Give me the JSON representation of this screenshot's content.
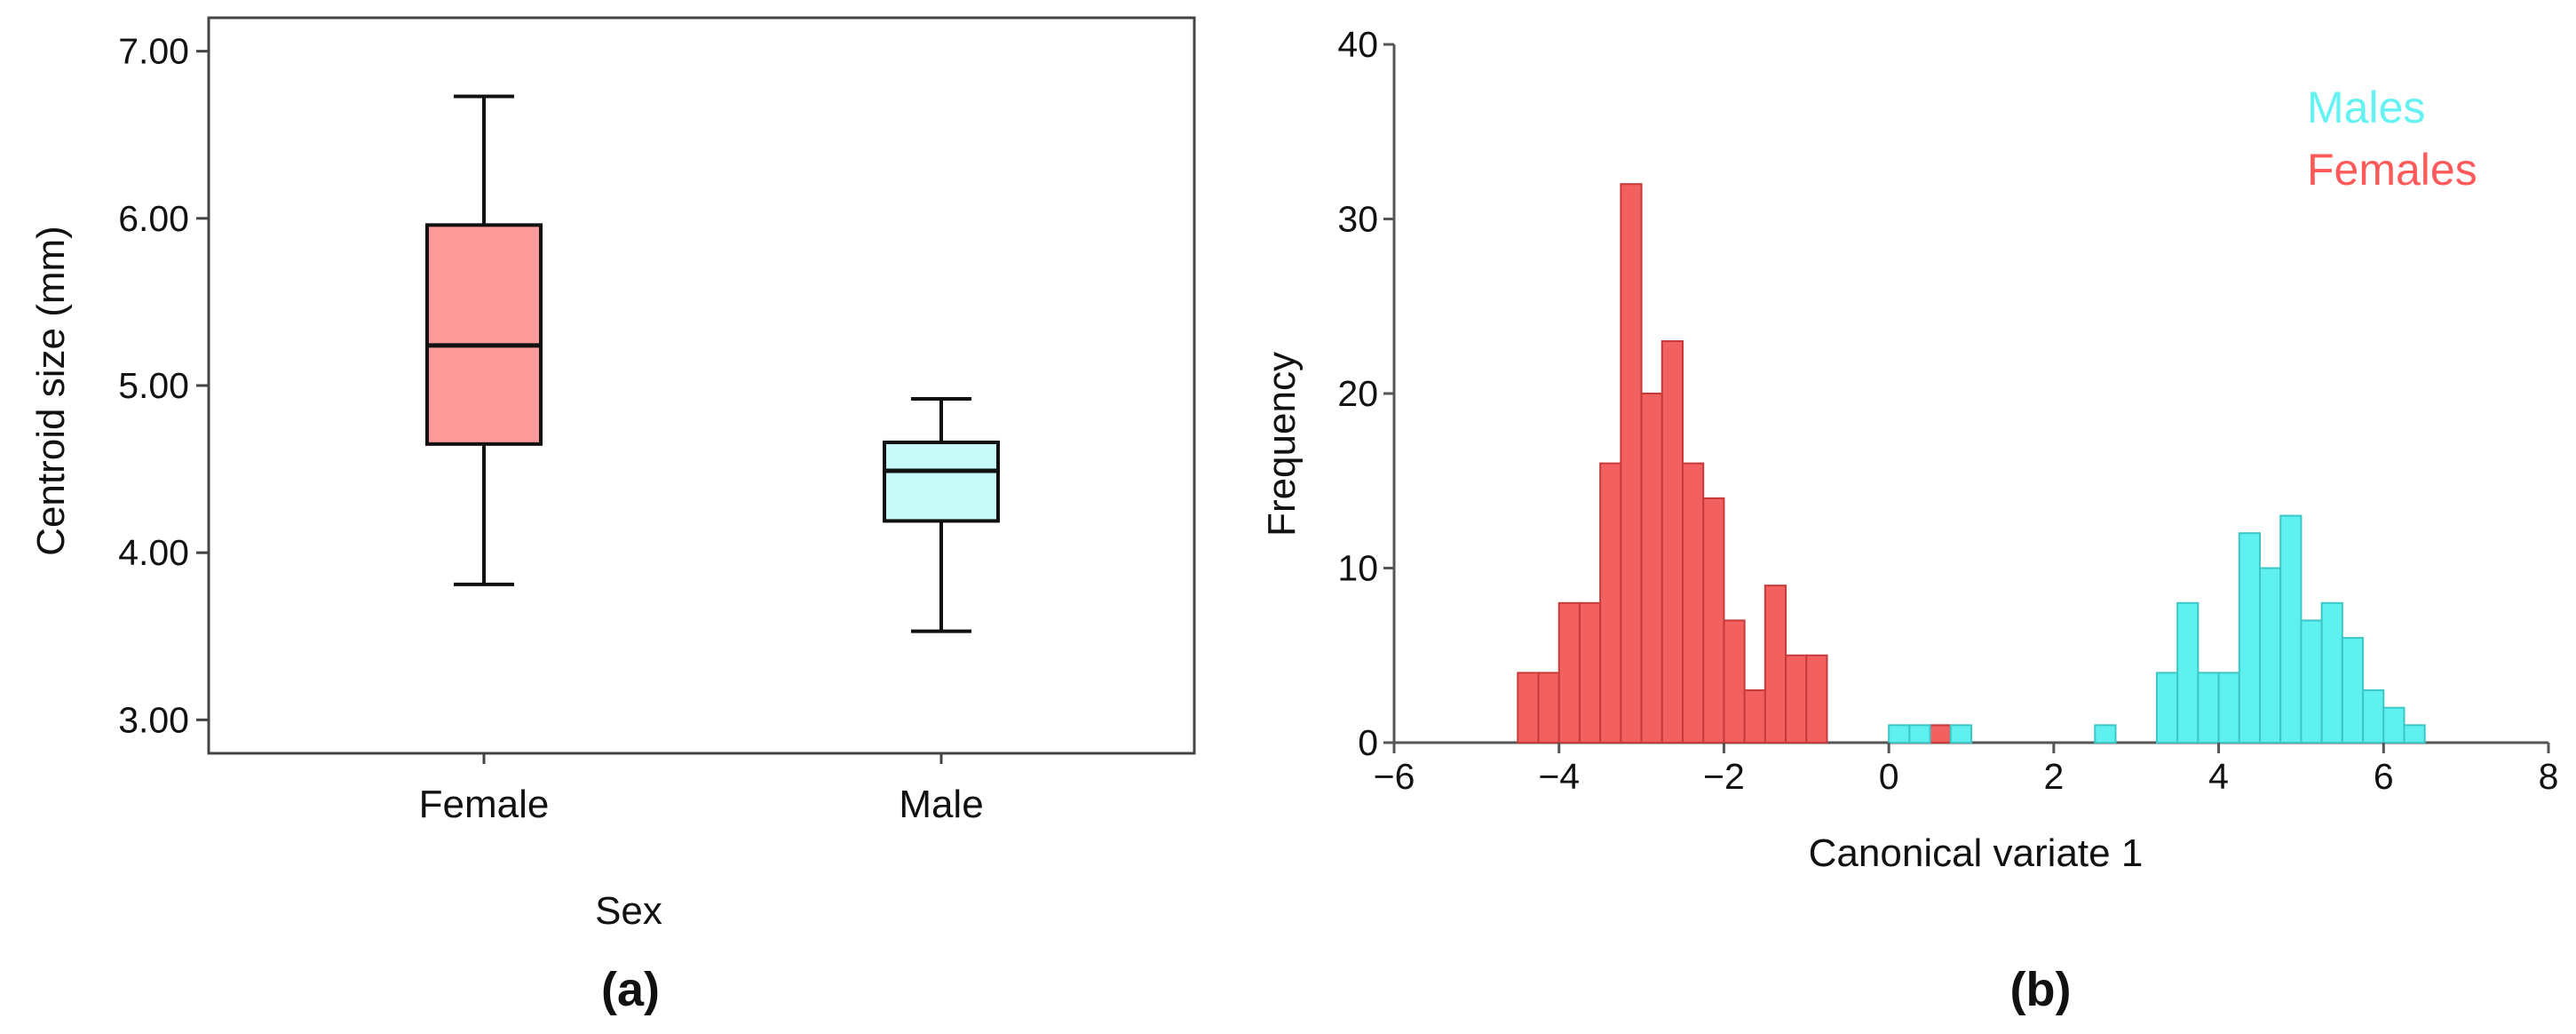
{
  "chart_data": [
    {
      "type": "box",
      "panel_label": "(a)",
      "title": "",
      "xlabel": "Sex",
      "ylabel": "Centroid size (mm)",
      "ylim": [
        2.8,
        7.2
      ],
      "yticks": [
        "3.00",
        "4.00",
        "5.00",
        "6.00",
        "7.00"
      ],
      "grid": false,
      "categories": [
        "Female",
        "Male"
      ],
      "boxes": [
        {
          "name": "Female",
          "whisker_low": 3.81,
          "q1": 4.65,
          "median": 5.24,
          "q3": 5.96,
          "whisker_high": 6.73,
          "color": "#ff9a9a"
        },
        {
          "name": "Male",
          "whisker_low": 3.53,
          "q1": 4.19,
          "median": 4.49,
          "q3": 4.66,
          "whisker_high": 4.92,
          "color": "#c8fafa"
        }
      ]
    },
    {
      "type": "histogram",
      "panel_label": "(b)",
      "title": "",
      "xlabel": "Canonical variate 1",
      "ylabel": "Frequency",
      "xlim": [
        -6,
        8
      ],
      "ylim": [
        0,
        40
      ],
      "xticks": [
        "−6",
        "−4",
        "−2",
        "0",
        "2",
        "4",
        "6",
        "8"
      ],
      "yticks": [
        "0",
        "10",
        "20",
        "30",
        "40"
      ],
      "bin_width": 0.25,
      "legend": {
        "position": "top-right",
        "entries": [
          {
            "name": "Males",
            "color": "#66f2f2"
          },
          {
            "name": "Females",
            "color": "#ff5a5a"
          }
        ]
      },
      "series": [
        {
          "name": "Females",
          "color": "#f26060",
          "edge": "#c83a3a",
          "bin_starts": [
            -4.5,
            -4.25,
            -4.0,
            -3.75,
            -3.5,
            -3.25,
            -3.0,
            -2.75,
            -2.5,
            -2.25,
            -2.0,
            -1.75,
            -1.5,
            -1.25,
            -1.0,
            -0.75,
            -0.5,
            0.5
          ],
          "counts": [
            4,
            4,
            8,
            8,
            16,
            32,
            20,
            23,
            16,
            14,
            7,
            3,
            9,
            5,
            5,
            0,
            0,
            1
          ]
        },
        {
          "name": "Males",
          "color": "#5ff0f0",
          "edge": "#3cc6c6",
          "bin_starts": [
            0.0,
            0.25,
            0.5,
            0.75,
            2.5,
            3.25,
            3.5,
            3.75,
            4.0,
            4.25,
            4.5,
            4.75,
            5.0,
            5.25,
            5.5,
            5.75,
            6.0,
            6.25,
            6.5,
            6.75,
            7.0
          ],
          "counts": [
            1,
            1,
            0,
            1,
            1,
            4,
            8,
            4,
            4,
            12,
            10,
            13,
            7,
            8,
            6,
            3,
            2,
            1,
            0,
            0,
            0
          ]
        }
      ]
    }
  ]
}
